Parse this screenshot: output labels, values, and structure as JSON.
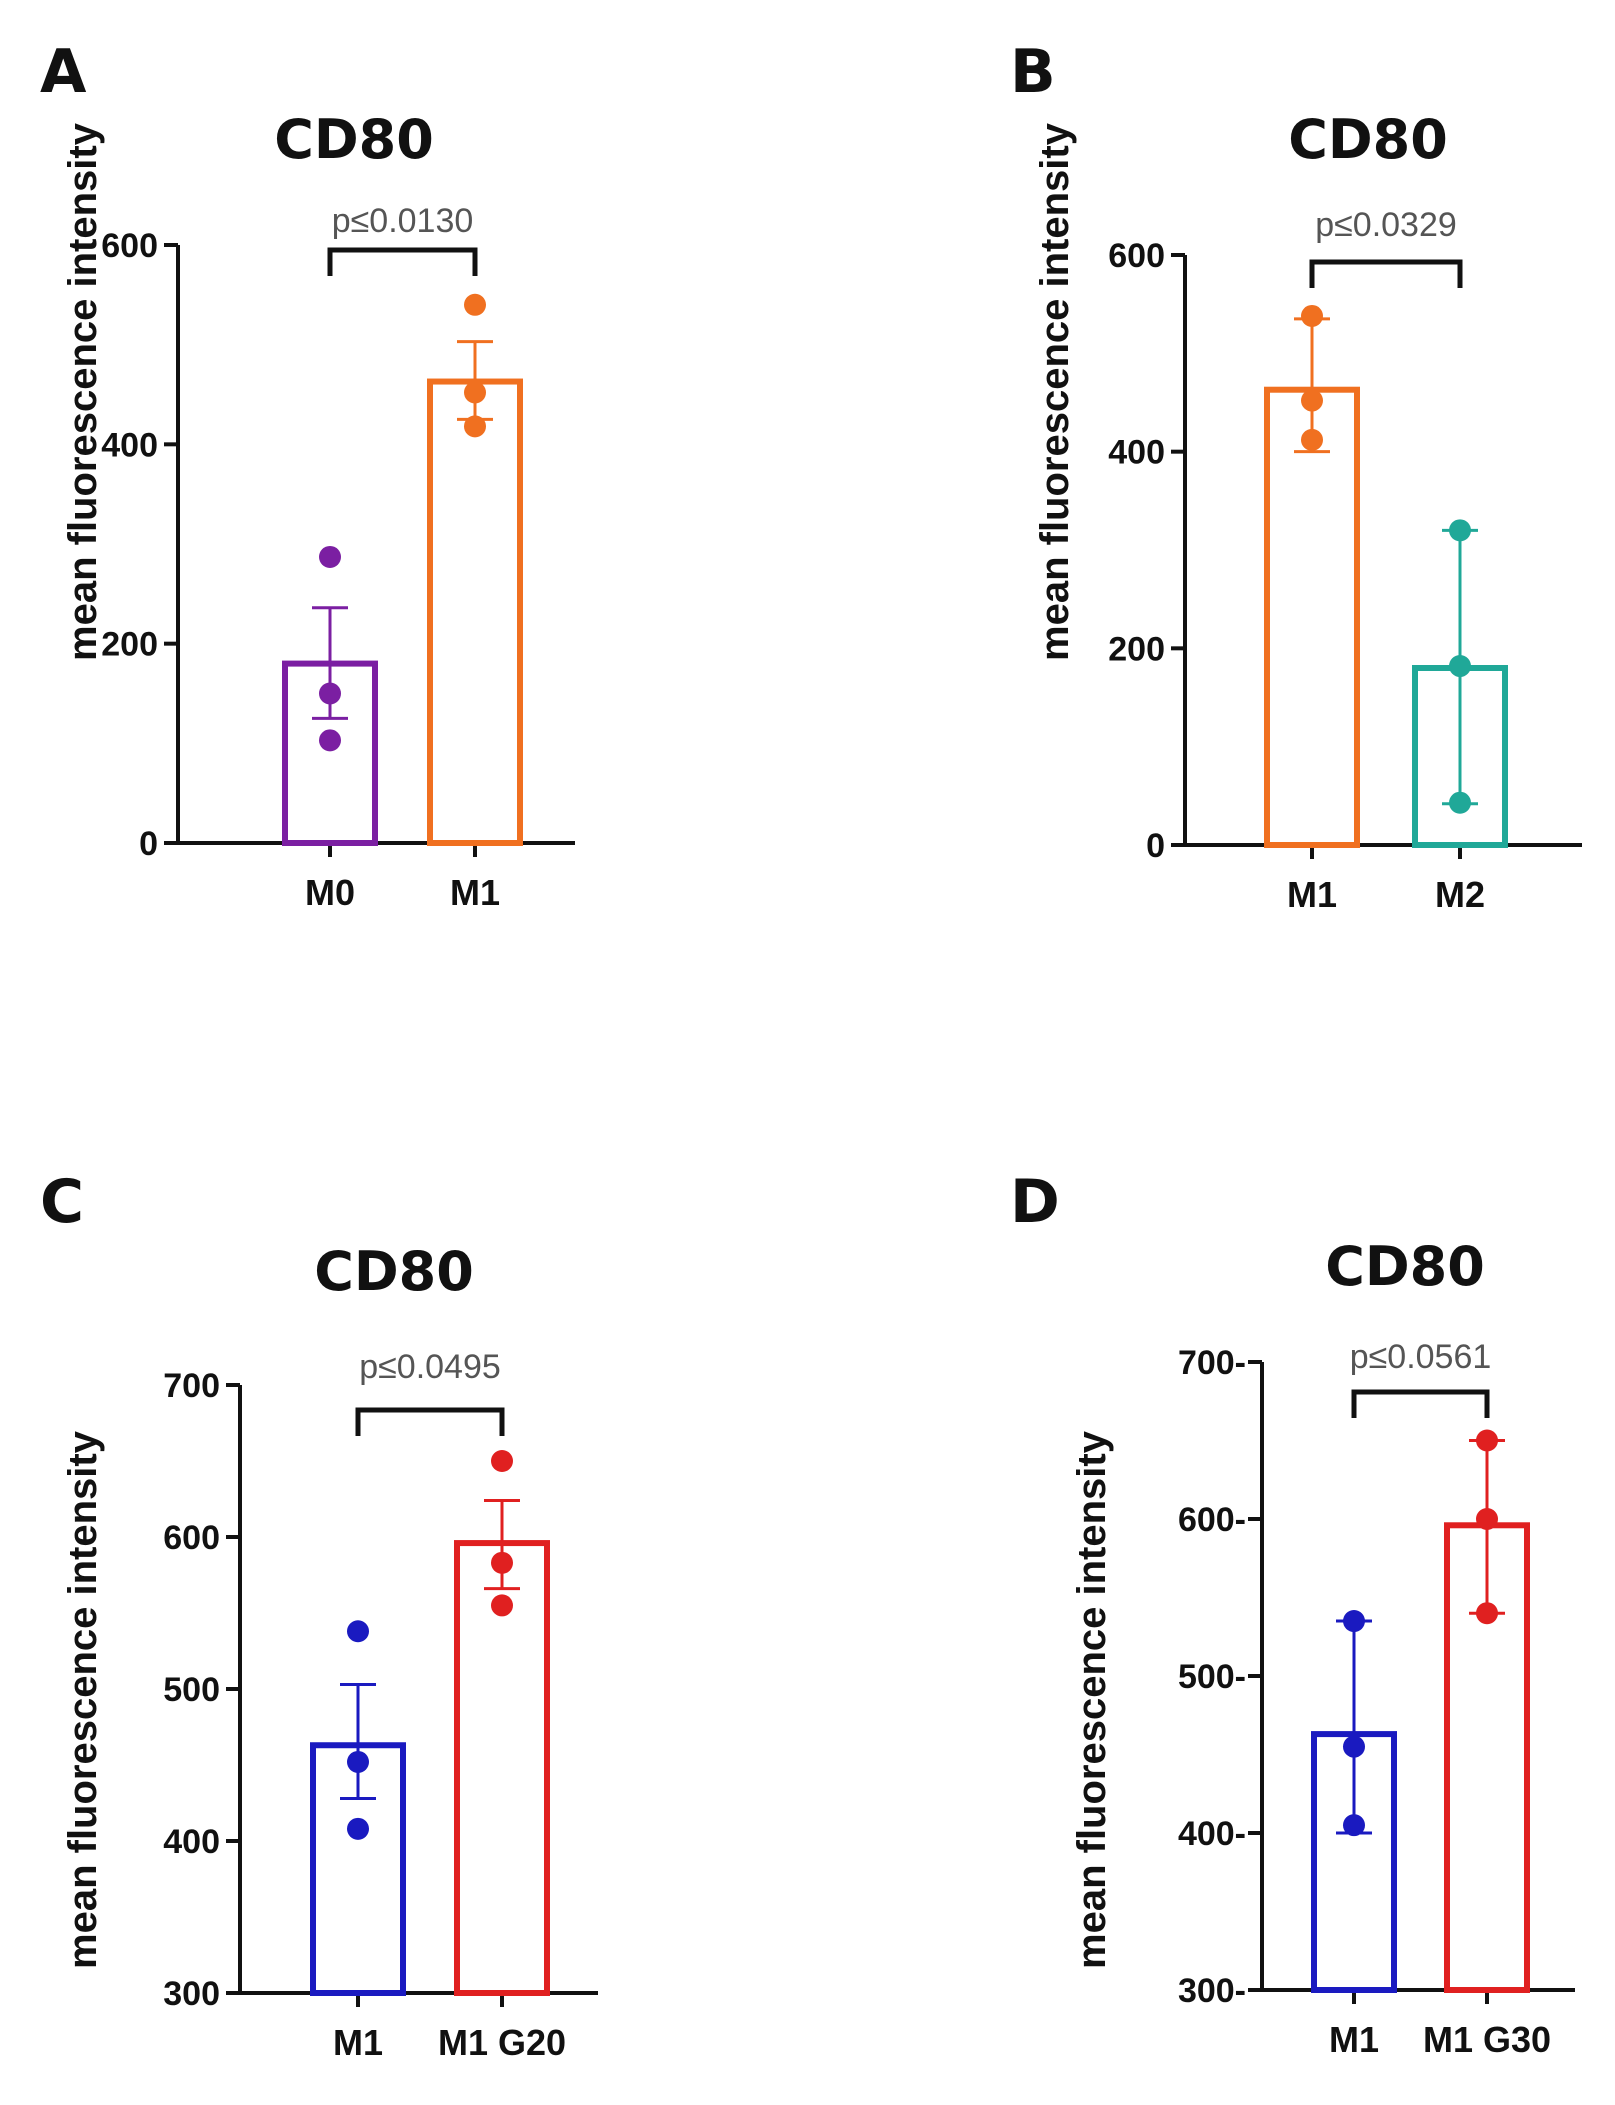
{
  "figure": {
    "panels": [
      {
        "letter": "A"
      },
      {
        "letter": "B"
      },
      {
        "letter": "C"
      },
      {
        "letter": "D"
      }
    ]
  },
  "chart_data": [
    {
      "panel": "A",
      "type": "bar",
      "title": "CD80",
      "ylabel": "mean fluorescence intensity",
      "xlabel": "",
      "ylim": [
        0,
        600
      ],
      "yticks": [
        0,
        200,
        400,
        600
      ],
      "ytick_labels": [
        "0",
        "200",
        "400",
        "600"
      ],
      "categories": [
        "M0",
        "M1"
      ],
      "values": [
        180,
        463
      ],
      "error_upper": [
        236,
        503
      ],
      "error_lower": [
        125,
        425
      ],
      "error_style": "upper_and_lower",
      "points": [
        [
          287,
          150,
          103
        ],
        [
          540,
          452,
          418
        ]
      ],
      "colors": [
        "#7b1fa2",
        "#f07020"
      ],
      "significance": {
        "label": "p≤0.0130",
        "from": 0,
        "to": 1
      }
    },
    {
      "panel": "B",
      "type": "bar",
      "title": "CD80",
      "ylabel": "mean fluorescence intensity",
      "xlabel": "",
      "ylim": [
        0,
        600
      ],
      "yticks": [
        0,
        200,
        400,
        600
      ],
      "ytick_labels": [
        "0",
        "200",
        "400",
        "600"
      ],
      "categories": [
        "M1",
        "M2"
      ],
      "values": [
        463,
        180
      ],
      "error_upper": [
        535,
        320
      ],
      "error_lower": [
        400,
        42
      ],
      "error_style": "upper_and_lower",
      "points": [
        [
          538,
          452,
          412
        ],
        [
          320,
          182,
          43
        ]
      ],
      "colors": [
        "#f07020",
        "#20a898"
      ],
      "significance": {
        "label": "p≤0.0329",
        "from": 0,
        "to": 1
      }
    },
    {
      "panel": "C",
      "type": "bar",
      "title": "CD80",
      "ylabel": "mean fluorescence intensity",
      "xlabel": "",
      "ylim": [
        300,
        700
      ],
      "yticks": [
        300,
        400,
        500,
        600,
        700
      ],
      "ytick_labels": [
        "300",
        "400",
        "500",
        "600",
        "700"
      ],
      "categories": [
        "M1",
        "M1 G20"
      ],
      "values": [
        463,
        596
      ],
      "error_upper": [
        503,
        624
      ],
      "error_lower": [
        428,
        566
      ],
      "error_style": "upper_and_lower",
      "points": [
        [
          538,
          452,
          408
        ],
        [
          650,
          583,
          555
        ]
      ],
      "colors": [
        "#1a1ac0",
        "#e02020"
      ],
      "significance": {
        "label": "p≤0.0495",
        "from": 0,
        "to": 1
      }
    },
    {
      "panel": "D",
      "type": "bar",
      "title": "CD80",
      "ylabel": "mean fluorescence intensity",
      "xlabel": "",
      "ylim": [
        300,
        700
      ],
      "yticks": [
        300,
        400,
        500,
        600,
        700
      ],
      "ytick_labels": [
        "300-",
        "400-",
        "500-",
        "600-",
        "700-"
      ],
      "categories": [
        "M1",
        "M1 G30"
      ],
      "values": [
        463,
        596
      ],
      "error_upper": [
        535,
        650
      ],
      "error_lower": [
        400,
        540
      ],
      "error_style": "upper_and_lower",
      "points": [
        [
          535,
          455,
          405
        ],
        [
          650,
          600,
          540
        ]
      ],
      "colors": [
        "#1a1ac0",
        "#e02020"
      ],
      "significance": {
        "label": "p≤0.0561",
        "from": 0,
        "to": 1
      }
    }
  ]
}
